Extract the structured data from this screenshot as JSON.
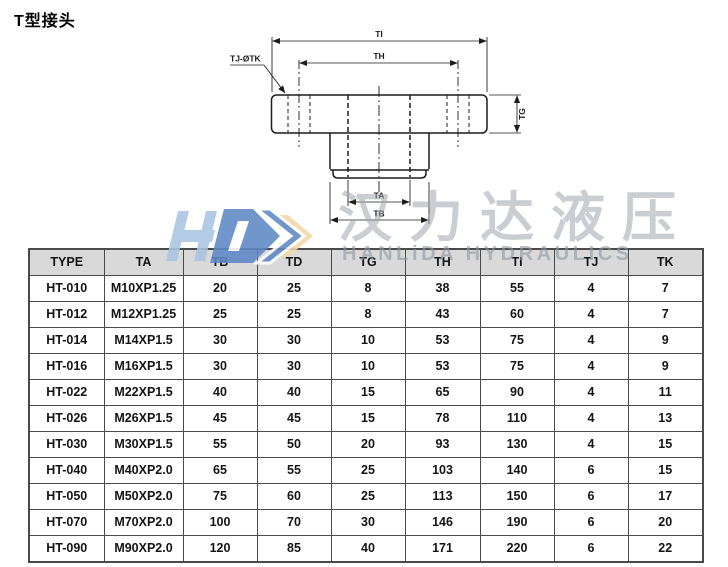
{
  "page": {
    "title": "T型接头"
  },
  "drawing": {
    "labels": {
      "ti": "TI",
      "th": "TH",
      "tg": "TG",
      "ta": "TA",
      "tb": "TB",
      "hole_callout": "TJ-ØTK"
    }
  },
  "watermark": {
    "cn": "汉力达液压",
    "en": "HANLiDA HYDRAULICS",
    "colors": {
      "logo_blue": "#5d88c6",
      "logo_light_blue": "#aac4e2",
      "logo_orange": "#f2d8a8",
      "text_gray": "#c0c6cc"
    }
  },
  "table": {
    "header_bg": "#d9d9d9",
    "border_color": "#4a4a4a",
    "columns": [
      "TYPE",
      "TA",
      "TB",
      "TD",
      "TG",
      "TH",
      "TI",
      "TJ",
      "TK"
    ],
    "rows": [
      [
        "HT-010",
        "M10XP1.25",
        "20",
        "25",
        "8",
        "38",
        "55",
        "4",
        "7"
      ],
      [
        "HT-012",
        "M12XP1.25",
        "25",
        "25",
        "8",
        "43",
        "60",
        "4",
        "7"
      ],
      [
        "HT-014",
        "M14XP1.5",
        "30",
        "30",
        "10",
        "53",
        "75",
        "4",
        "9"
      ],
      [
        "HT-016",
        "M16XP1.5",
        "30",
        "30",
        "10",
        "53",
        "75",
        "4",
        "9"
      ],
      [
        "HT-022",
        "M22XP1.5",
        "40",
        "40",
        "15",
        "65",
        "90",
        "4",
        "11"
      ],
      [
        "HT-026",
        "M26XP1.5",
        "45",
        "45",
        "15",
        "78",
        "110",
        "4",
        "13"
      ],
      [
        "HT-030",
        "M30XP1.5",
        "55",
        "50",
        "20",
        "93",
        "130",
        "4",
        "15"
      ],
      [
        "HT-040",
        "M40XP2.0",
        "65",
        "55",
        "25",
        "103",
        "140",
        "6",
        "15"
      ],
      [
        "HT-050",
        "M50XP2.0",
        "75",
        "60",
        "25",
        "113",
        "150",
        "6",
        "17"
      ],
      [
        "HT-070",
        "M70XP2.0",
        "100",
        "70",
        "30",
        "146",
        "190",
        "6",
        "20"
      ],
      [
        "HT-090",
        "M90XP2.0",
        "120",
        "85",
        "40",
        "171",
        "220",
        "6",
        "22"
      ]
    ]
  }
}
